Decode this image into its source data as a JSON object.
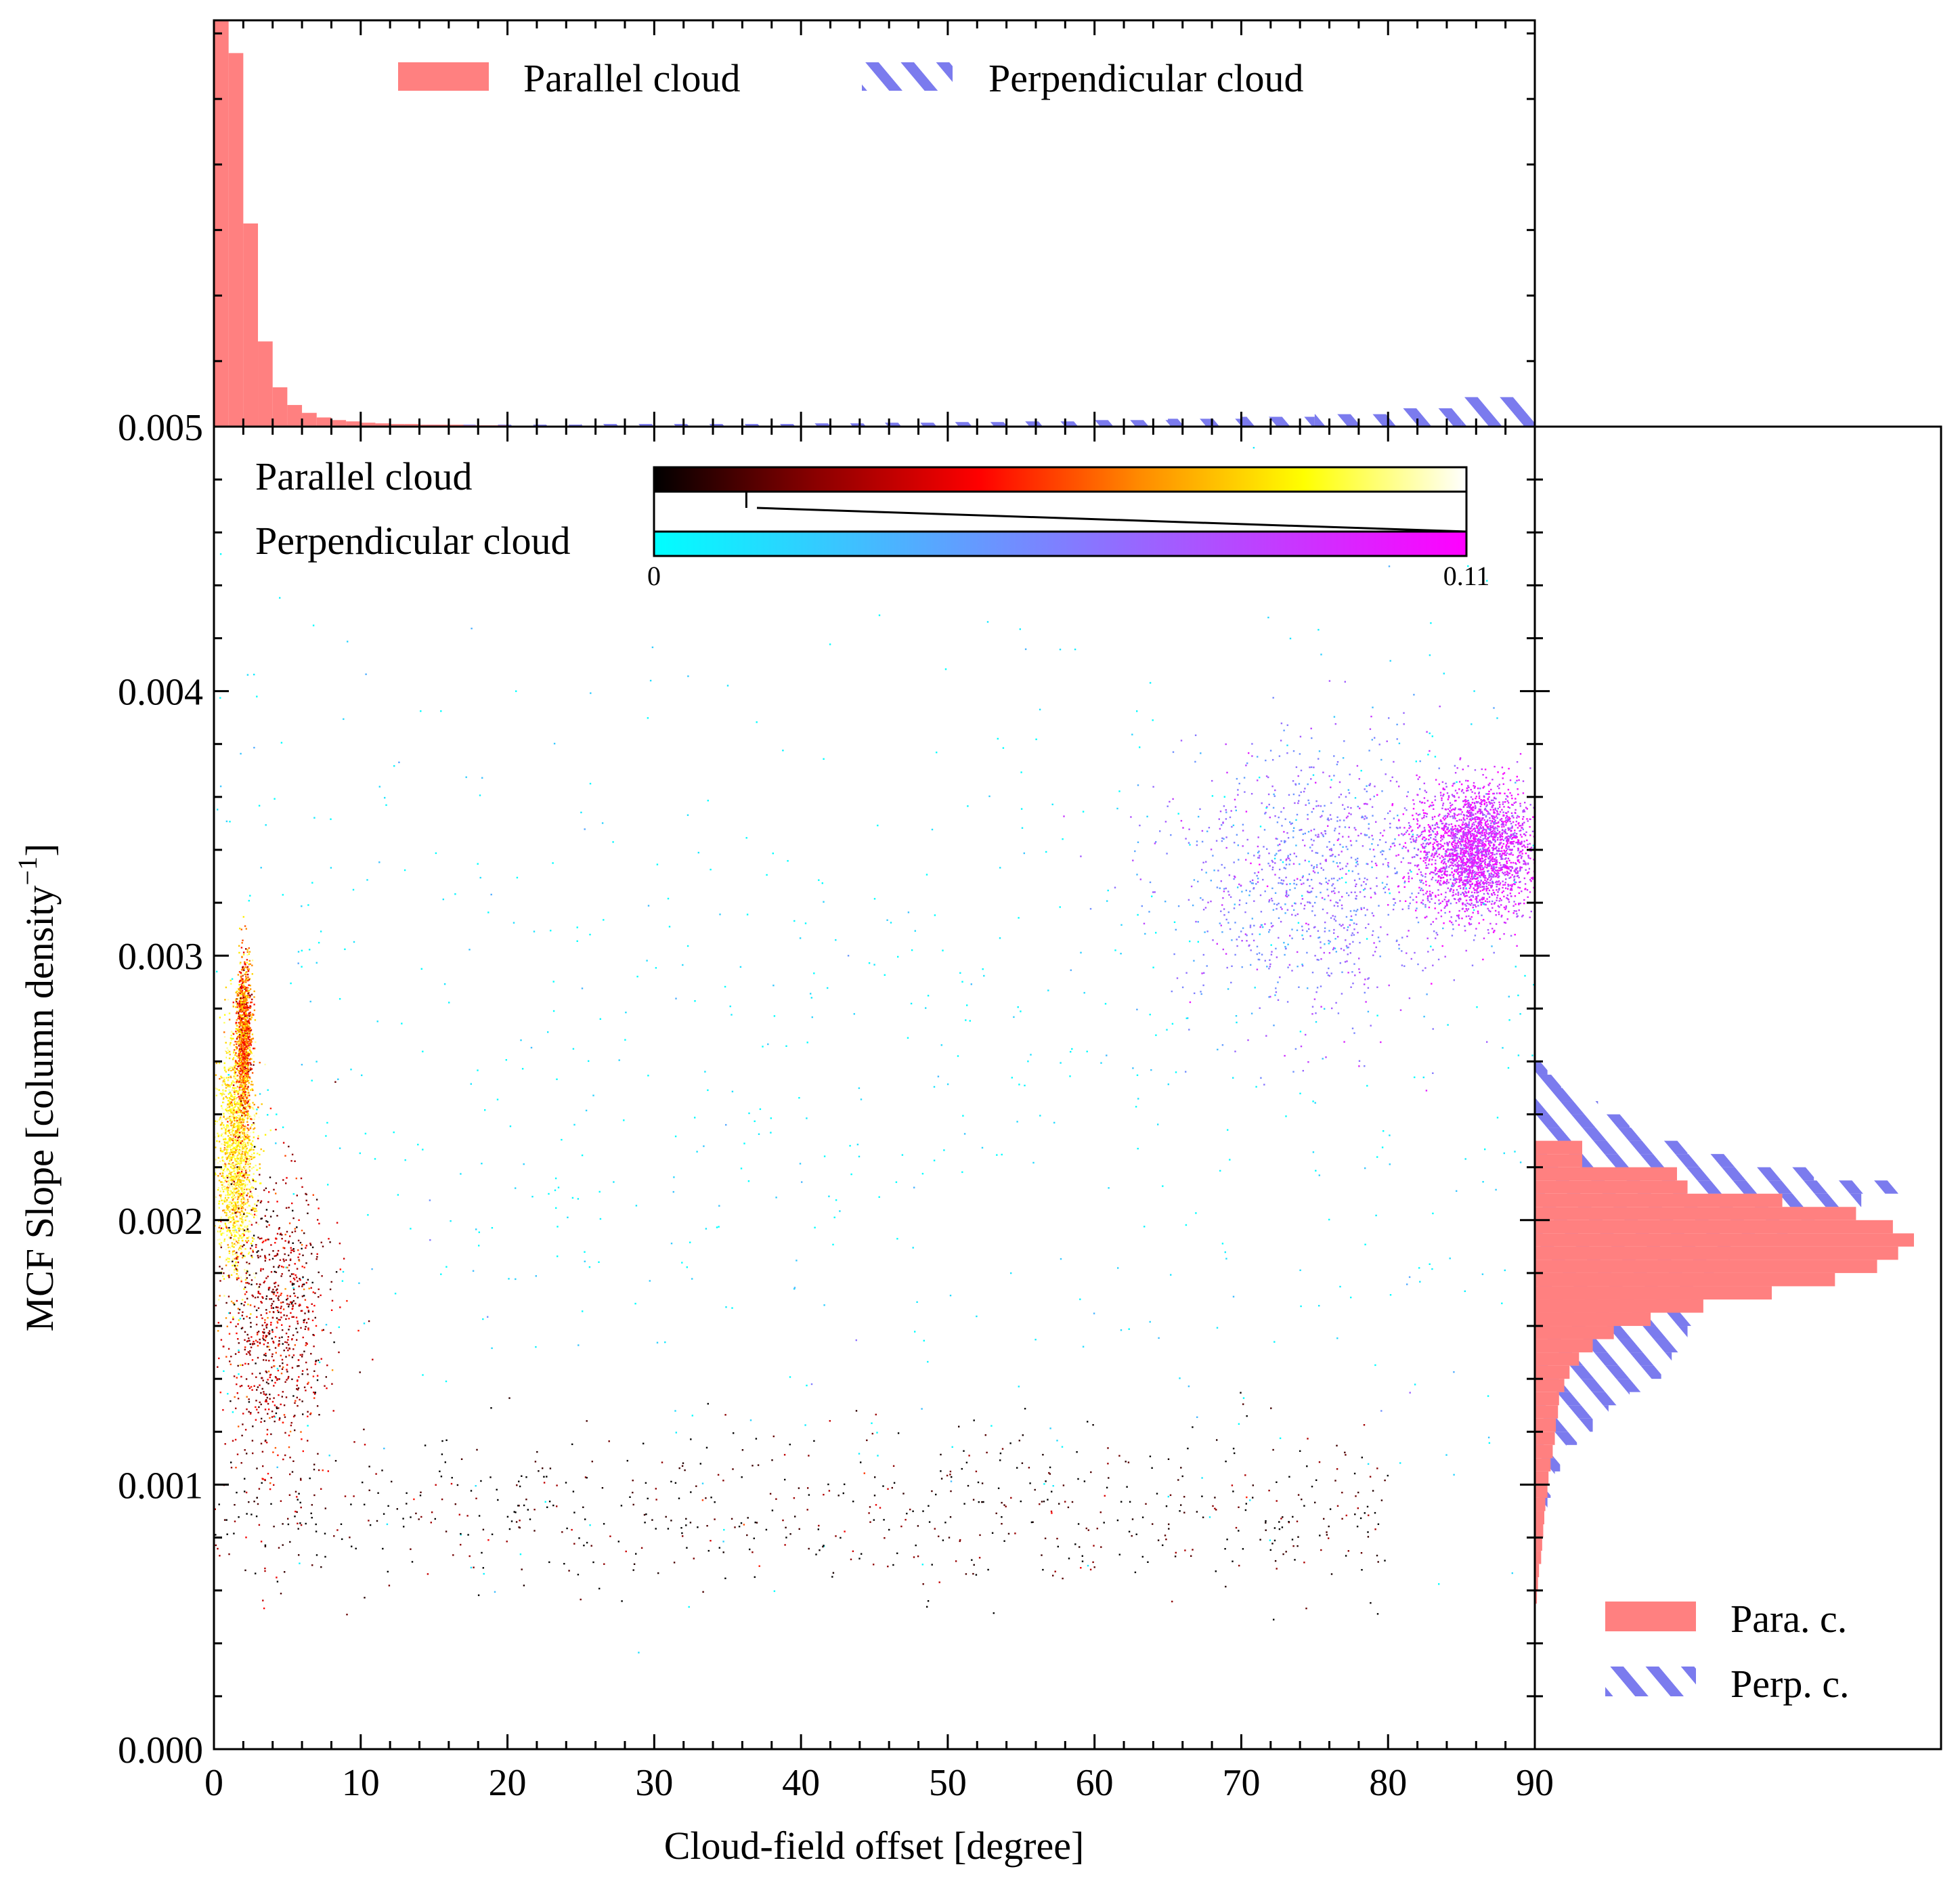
{
  "figure": {
    "xlabel": "Cloud-field offset [degree]",
    "ylabel": "MCF Slope [column density",
    "ylabel_sup": "−1",
    "ylabel_close": "]"
  },
  "colors": {
    "parallel_fill": "#ff8080",
    "perpendicular_hatch": "#7b7bee",
    "parallel_cmap": [
      "#000000",
      "#8b0000",
      "#ff0000",
      "#ff8c00",
      "#ffff00",
      "#ffffff"
    ],
    "perpendicular_cmap": [
      "#00ffff",
      "#7f7fff",
      "#ff00ff"
    ]
  },
  "legend_top": {
    "parallel_label": "Parallel cloud",
    "perpendicular_label": "Perpendicular cloud",
    "placement": "upper-center"
  },
  "legend_right": {
    "parallel_label": "Para. c.",
    "perpendicular_label": "Perp. c.",
    "placement": "lower-right"
  },
  "colorbars": {
    "parallel_label": "Parallel cloud",
    "perpendicular_label": "Perpendicular cloud",
    "min_label": "0",
    "max_label": "0.11",
    "range": [
      0,
      0.11
    ],
    "parallel_max": 0.11,
    "perpendicular_max": 0.0125
  },
  "chart_data": [
    {
      "type": "scatter",
      "panel": "main",
      "xlabel": "Cloud-field offset [degree]",
      "ylabel": "MCF Slope [column density−1]",
      "xlim": [
        0,
        90
      ],
      "ylim": [
        0,
        0.005
      ],
      "xticks": [
        "0",
        "10",
        "20",
        "30",
        "40",
        "50",
        "60",
        "70",
        "80",
        "90"
      ],
      "yticks": [
        "0.000",
        "0.001",
        "0.002",
        "0.003",
        "0.004",
        "0.005"
      ],
      "series": [
        {
          "name": "Parallel cloud",
          "colormap": "hot",
          "clusters": [
            {
              "x_center": 1.5,
              "y_center": 0.00225,
              "x_spread": 1.2,
              "y_spread": 0.0002,
              "density": "very high"
            },
            {
              "x_center": 2.0,
              "y_center": 0.0027,
              "x_spread": 0.5,
              "y_spread": 0.00015,
              "density": "high"
            },
            {
              "x_center": 4.0,
              "y_center": 0.0016,
              "x_spread": 4.0,
              "y_spread": 0.0003,
              "density": "medium"
            },
            {
              "x_center": 40.0,
              "y_center": 0.0009,
              "x_spread": 40.0,
              "y_spread": 0.00015,
              "density": "sparse"
            }
          ]
        },
        {
          "name": "Perpendicular cloud",
          "colormap": "cool",
          "clusters": [
            {
              "x_center": 86.0,
              "y_center": 0.0034,
              "x_spread": 4.0,
              "y_spread": 0.00012,
              "density": "very high"
            },
            {
              "x_center": 75.0,
              "y_center": 0.0033,
              "x_spread": 10.0,
              "y_spread": 0.00025,
              "density": "high"
            },
            {
              "x_center": 45.0,
              "y_center": 0.0026,
              "x_spread": 45.0,
              "y_spread": 0.0009,
              "density": "sparse"
            }
          ]
        }
      ]
    },
    {
      "type": "bar",
      "panel": "top-histogram",
      "xlim": [
        0,
        90
      ],
      "series": [
        {
          "name": "Parallel cloud",
          "bin_width": 1,
          "bins_start": 0,
          "values": [
            0.62,
            0.57,
            0.31,
            0.13,
            0.06,
            0.033,
            0.021,
            0.014,
            0.01,
            0.008,
            0.006,
            0.005,
            0.004,
            0.004,
            0.003,
            0.003,
            0.003,
            0.002,
            0.002,
            0.002
          ]
        },
        {
          "name": "Perpendicular cloud",
          "bin_width": 5,
          "bins_start": 0,
          "values": [
            0.003,
            0.003,
            0.003,
            0.003,
            0.003,
            0.004,
            0.004,
            0.004,
            0.005,
            0.006,
            0.007,
            0.008,
            0.01,
            0.012,
            0.015,
            0.019,
            0.028,
            0.045
          ]
        }
      ]
    },
    {
      "type": "bar",
      "panel": "right-histogram",
      "orientation": "horizontal",
      "ylim": [
        0,
        0.005
      ],
      "series": [
        {
          "name": "Para. c.",
          "bin_width": 5e-05,
          "bins_start": 0.00055,
          "values": [
            0.02,
            0.03,
            0.04,
            0.06,
            0.07,
            0.08,
            0.09,
            0.1,
            0.12,
            0.13,
            0.15,
            0.17,
            0.19,
            0.2,
            0.22,
            0.23,
            0.28,
            0.33,
            0.42,
            0.55,
            0.75,
            1.1,
            1.6,
            2.25,
            2.85,
            3.25,
            3.45,
            3.6,
            3.4,
            3.05,
            2.35,
            1.45,
            1.35,
            0.45,
            0.45
          ]
        },
        {
          "name": "Perp. c.",
          "bin_width": 5e-05,
          "bins_start": 0.00055,
          "values": [
            0.01,
            0.02,
            0.03,
            0.04,
            0.05,
            0.07,
            0.09,
            0.12,
            0.15,
            0.19,
            0.24,
            0.3,
            0.4,
            0.55,
            0.7,
            0.9,
            1.05,
            1.2,
            1.3,
            1.4,
            1.45,
            1.5,
            1.5,
            1.55,
            1.6,
            1.7,
            1.85,
            2.05,
            2.4,
            2.75,
            3.1,
            3.45,
            2.65,
            1.9,
            1.45,
            1.05,
            0.9,
            0.6,
            0.45,
            0.25,
            0.12
          ]
        }
      ]
    }
  ]
}
